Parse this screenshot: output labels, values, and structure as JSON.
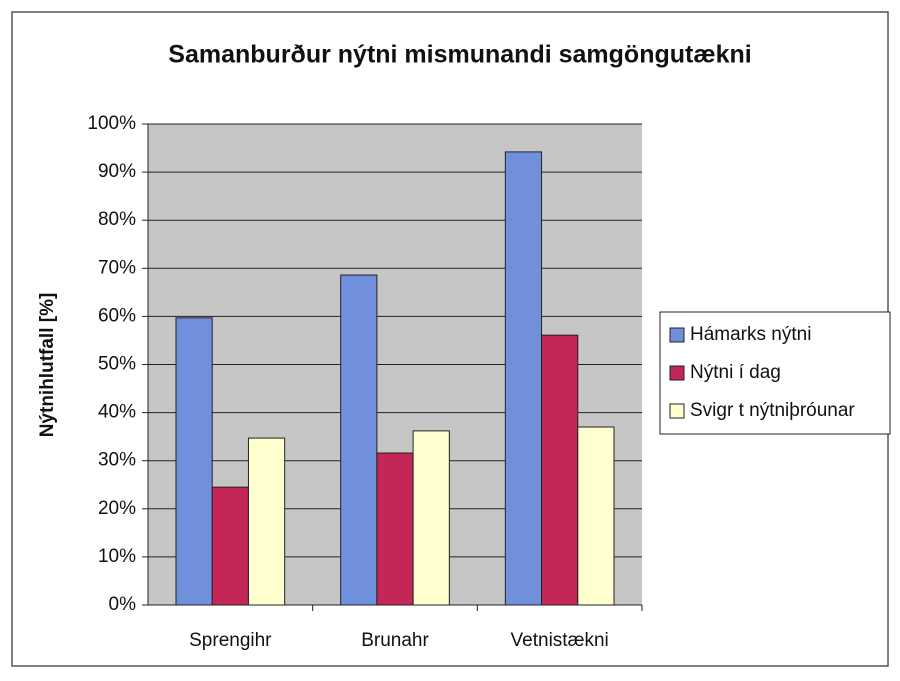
{
  "chart_data": {
    "type": "bar",
    "title": "Samanburður nýtni mismunandi samgöngutækni",
    "y_label": "Nýtnihlutfall [%]",
    "categories": [
      "Sprengihr",
      "Brunahr",
      "Vetnistækni"
    ],
    "series": [
      {
        "name": "Hámarks nýtni",
        "color": "#7090dc",
        "values": [
          59.7,
          68.6,
          94.2
        ]
      },
      {
        "name": "Nýtni í dag",
        "color": "#c42658",
        "values": [
          24.5,
          31.6,
          56.1
        ]
      },
      {
        "name": "Svigr t nýtniþróunar",
        "color": "#ffffd0",
        "values": [
          34.7,
          36.2,
          37
        ]
      }
    ],
    "ylim": [
      0,
      100
    ],
    "yticks": [
      {
        "value": 0,
        "label": "0%"
      },
      {
        "value": 10,
        "label": "10%"
      },
      {
        "value": 20,
        "label": "20%"
      },
      {
        "value": 30,
        "label": "30%"
      },
      {
        "value": 40,
        "label": "40%"
      },
      {
        "value": 50,
        "label": "50%"
      },
      {
        "value": 60,
        "label": "60%"
      },
      {
        "value": 70,
        "label": "70%"
      },
      {
        "value": 80,
        "label": "80%"
      },
      {
        "value": 90,
        "label": "90%"
      },
      {
        "value": 100,
        "label": "100%"
      }
    ],
    "grid": true,
    "legend": "right"
  }
}
